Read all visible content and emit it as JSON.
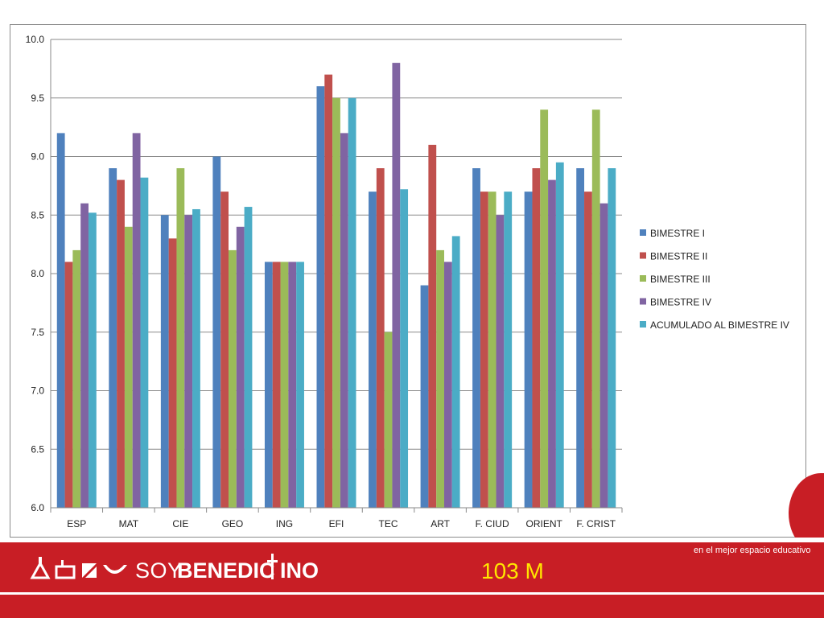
{
  "slide": {
    "code": "103 M",
    "tagline": "en el mejor espacio educativo",
    "brand": "SOYBENEDICTINO",
    "brand_color": "#c81e25",
    "code_color": "#ffe600"
  },
  "chart_data": {
    "type": "bar",
    "title": "",
    "xlabel": "",
    "ylabel": "",
    "ylim": [
      6.0,
      10.0
    ],
    "yticks": [
      "6.0",
      "6.5",
      "7.0",
      "7.5",
      "8.0",
      "8.5",
      "9.0",
      "9.5",
      "10.0"
    ],
    "grid": true,
    "legend_position": "right",
    "categories": [
      "ESP",
      "MAT",
      "CIE",
      "GEO",
      "ING",
      "EFI",
      "TEC",
      "ART",
      "F. CIUD",
      "ORIENT",
      "F. CRIST"
    ],
    "series": [
      {
        "name": "BIMESTRE I",
        "color": "#4f81bd",
        "values": [
          9.2,
          8.9,
          8.5,
          9.0,
          8.1,
          9.6,
          8.7,
          7.9,
          8.9,
          8.7,
          8.9
        ]
      },
      {
        "name": "BIMESTRE II",
        "color": "#c0504d",
        "values": [
          8.1,
          8.8,
          8.3,
          8.7,
          8.1,
          9.7,
          8.9,
          9.1,
          8.7,
          8.9,
          8.7
        ]
      },
      {
        "name": "BIMESTRE III",
        "color": "#9bbb59",
        "values": [
          8.2,
          8.4,
          8.9,
          8.2,
          8.1,
          9.5,
          7.5,
          8.2,
          8.7,
          9.4,
          9.4
        ]
      },
      {
        "name": "BIMESTRE IV",
        "color": "#8064a2",
        "values": [
          8.6,
          9.2,
          8.5,
          8.4,
          8.1,
          9.2,
          9.8,
          8.1,
          8.5,
          8.8,
          8.6
        ]
      },
      {
        "name": "ACUMULADO AL BIMESTRE IV",
        "color": "#4bacc6",
        "values": [
          8.52,
          8.82,
          8.55,
          8.57,
          8.1,
          9.5,
          8.72,
          8.32,
          8.7,
          8.95,
          8.9
        ]
      }
    ]
  }
}
